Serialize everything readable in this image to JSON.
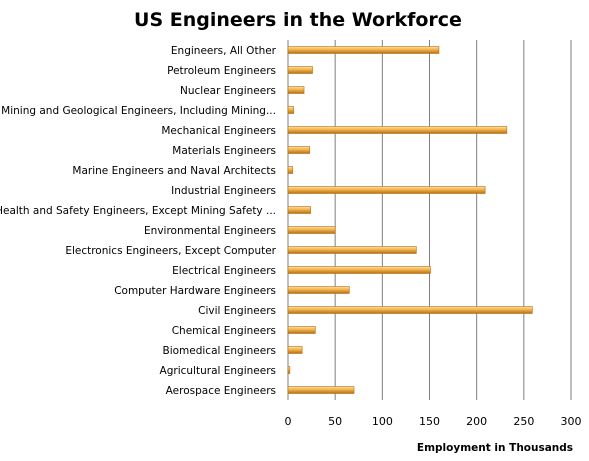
{
  "chart_data": {
    "type": "bar",
    "orientation": "horizontal",
    "title": "US Engineers in the Workforce",
    "xlabel": "Employment in Thousands",
    "ylabel": "",
    "xlim": [
      0,
      300
    ],
    "xticks": [
      0,
      50,
      100,
      150,
      200,
      250,
      300
    ],
    "grid": true,
    "categories": [
      "Aerospace Engineers",
      "Agricultural Engineers",
      "Biomedical Engineers",
      "Chemical Engineers",
      "Civil Engineers",
      "Computer Hardware Engineers",
      "Electrical Engineers",
      "Electronics Engineers, Except Computer",
      "Environmental Engineers",
      "Health and Safety Engineers, Except Mining Safety ...",
      "Industrial Engineers",
      "Marine Engineers and Naval Architects",
      "Materials Engineers",
      "Mechanical Engineers",
      "Mining and Geological Engineers, Including Mining...",
      "Nuclear Engineers",
      "Petroleum Engineers",
      "Engineers, All Other"
    ],
    "values": [
      70,
      2,
      15,
      29,
      259,
      65,
      151,
      136,
      50,
      24,
      209,
      5,
      23,
      232,
      6,
      17,
      26,
      160
    ],
    "colors": {
      "bar_light": "#fbe3a8",
      "bar_mid": "#f0b24b",
      "bar_dark": "#b86e12",
      "grid": "#7f7f7f"
    }
  }
}
